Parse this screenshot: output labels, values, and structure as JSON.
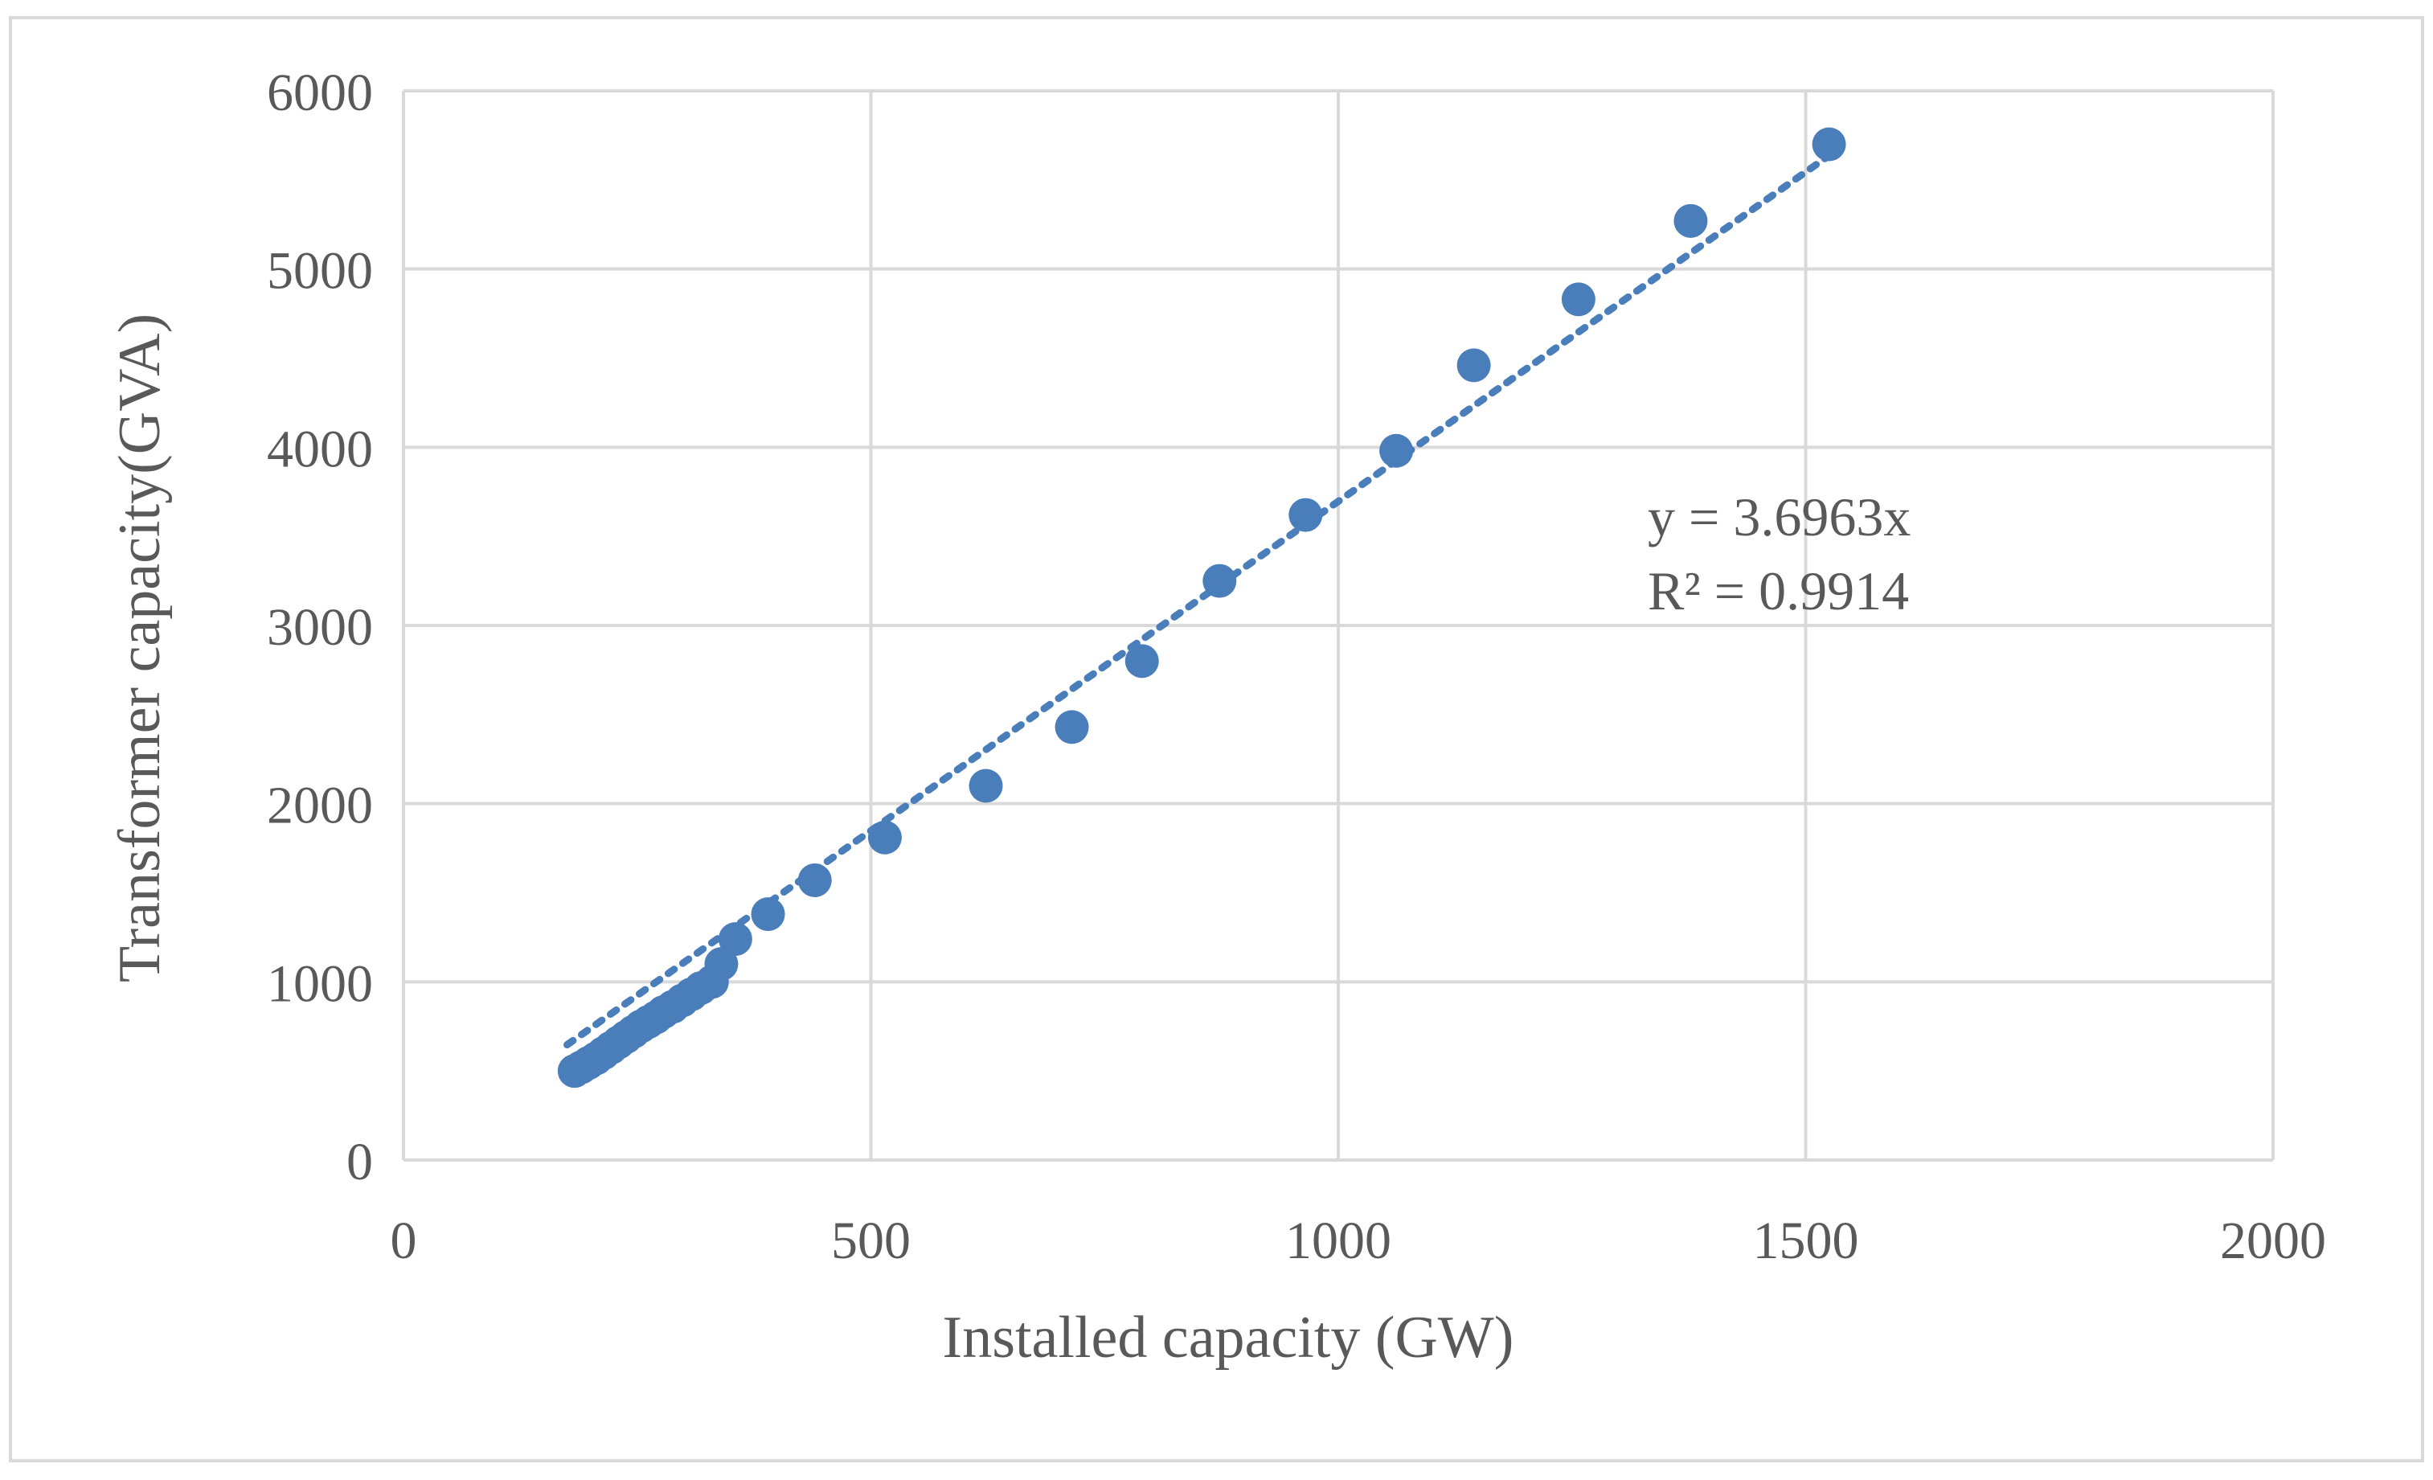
{
  "chart_data": {
    "type": "scatter",
    "title": "",
    "xlabel": "Installed capacity (GW)",
    "ylabel": "Transformer capacity(GVA)",
    "xlim": [
      0,
      2000
    ],
    "ylim": [
      0,
      6000
    ],
    "xticks": [
      0,
      500,
      1000,
      1500,
      2000
    ],
    "yticks": [
      0,
      1000,
      2000,
      3000,
      4000,
      5000,
      6000
    ],
    "grid": true,
    "series": [
      {
        "name": "Transformer capacity",
        "color": "#4a7ebb",
        "points": [
          {
            "x": 183,
            "y": 500
          },
          {
            "x": 190,
            "y": 520
          },
          {
            "x": 198,
            "y": 545
          },
          {
            "x": 206,
            "y": 570
          },
          {
            "x": 214,
            "y": 600
          },
          {
            "x": 222,
            "y": 630
          },
          {
            "x": 230,
            "y": 660
          },
          {
            "x": 238,
            "y": 690
          },
          {
            "x": 246,
            "y": 720
          },
          {
            "x": 254,
            "y": 750
          },
          {
            "x": 262,
            "y": 775
          },
          {
            "x": 270,
            "y": 800
          },
          {
            "x": 278,
            "y": 830
          },
          {
            "x": 288,
            "y": 860
          },
          {
            "x": 298,
            "y": 895
          },
          {
            "x": 308,
            "y": 930
          },
          {
            "x": 318,
            "y": 965
          },
          {
            "x": 330,
            "y": 1000
          },
          {
            "x": 340,
            "y": 1100
          },
          {
            "x": 355,
            "y": 1240
          },
          {
            "x": 390,
            "y": 1380
          },
          {
            "x": 440,
            "y": 1570
          },
          {
            "x": 515,
            "y": 1810
          },
          {
            "x": 623,
            "y": 2100
          },
          {
            "x": 715,
            "y": 2430
          },
          {
            "x": 790,
            "y": 2800
          },
          {
            "x": 873,
            "y": 3250
          },
          {
            "x": 965,
            "y": 3620
          },
          {
            "x": 1062,
            "y": 3980
          },
          {
            "x": 1145,
            "y": 4460
          },
          {
            "x": 1257,
            "y": 4830
          },
          {
            "x": 1377,
            "y": 5270
          },
          {
            "x": 1525,
            "y": 5700
          }
        ]
      }
    ],
    "trendline": {
      "type": "linear",
      "slope": 3.6963,
      "intercept": 0,
      "x_range": [
        175,
        1525
      ],
      "style": "dotted",
      "color": "#4a7ebb"
    },
    "annotations": [
      {
        "text": "y = 3.6963x",
        "position": "right-upper"
      },
      {
        "text": "R² = 0.9914",
        "position": "right-upper"
      }
    ]
  }
}
